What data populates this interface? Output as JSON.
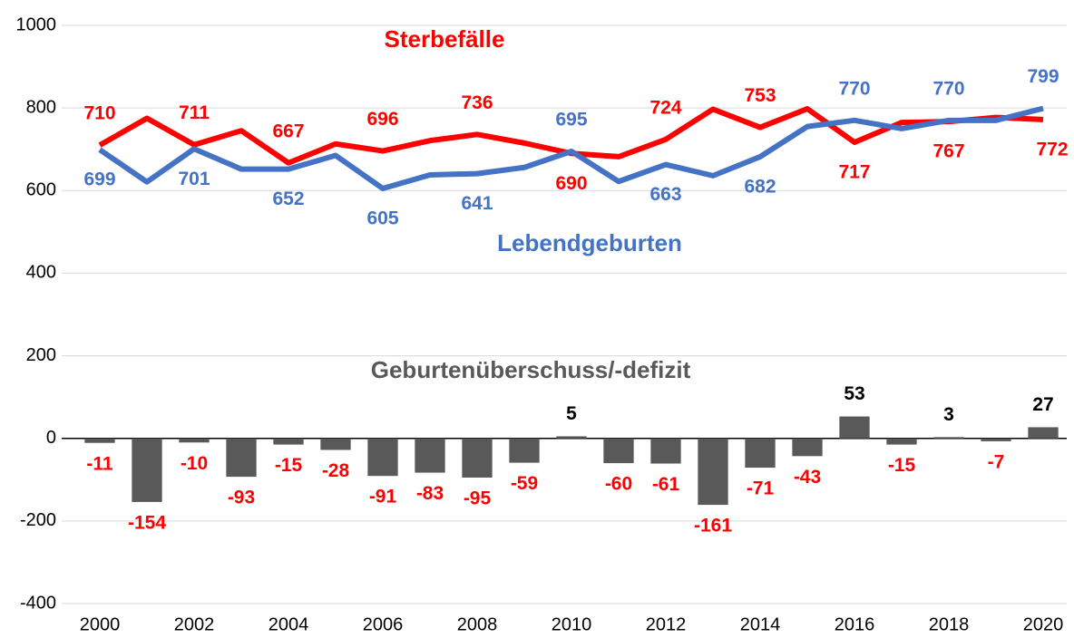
{
  "chart_data": {
    "type": "line",
    "categories": [
      "2000",
      null,
      "2002",
      null,
      "2004",
      null,
      "2006",
      null,
      "2008",
      null,
      "2010",
      null,
      "2012",
      null,
      "2014",
      null,
      "2016",
      null,
      "2018",
      null,
      "2020"
    ],
    "series": [
      {
        "name": "Sterbefälle",
        "type": "line",
        "color": "#ff0000",
        "values": [
          710,
          775,
          711,
          745,
          667,
          713,
          696,
          721,
          736,
          715,
          690,
          682,
          724,
          797,
          753,
          798,
          717,
          765,
          767,
          777,
          772
        ]
      },
      {
        "name": "Lebendgeburten",
        "type": "line",
        "color": "#4472c4",
        "values": [
          699,
          621,
          701,
          652,
          652,
          685,
          605,
          638,
          641,
          656,
          695,
          622,
          663,
          636,
          682,
          755,
          770,
          750,
          770,
          770,
          799
        ]
      },
      {
        "name": "Geburtenüberschuss/-defizit",
        "type": "bar",
        "color": "#595959",
        "values": [
          -11,
          -154,
          -10,
          -93,
          -15,
          -28,
          -91,
          -83,
          -95,
          -59,
          5,
          -60,
          -61,
          -161,
          -71,
          -43,
          53,
          -15,
          3,
          -7,
          27
        ]
      }
    ],
    "ylim": [
      -400,
      1000
    ],
    "yticks": [
      -400,
      -200,
      0,
      200,
      400,
      600,
      800,
      1000
    ],
    "grid": true,
    "negative_label_color": "#ff0000",
    "positive_label_color": "#000000",
    "series_name_color_bar": "#595959"
  }
}
